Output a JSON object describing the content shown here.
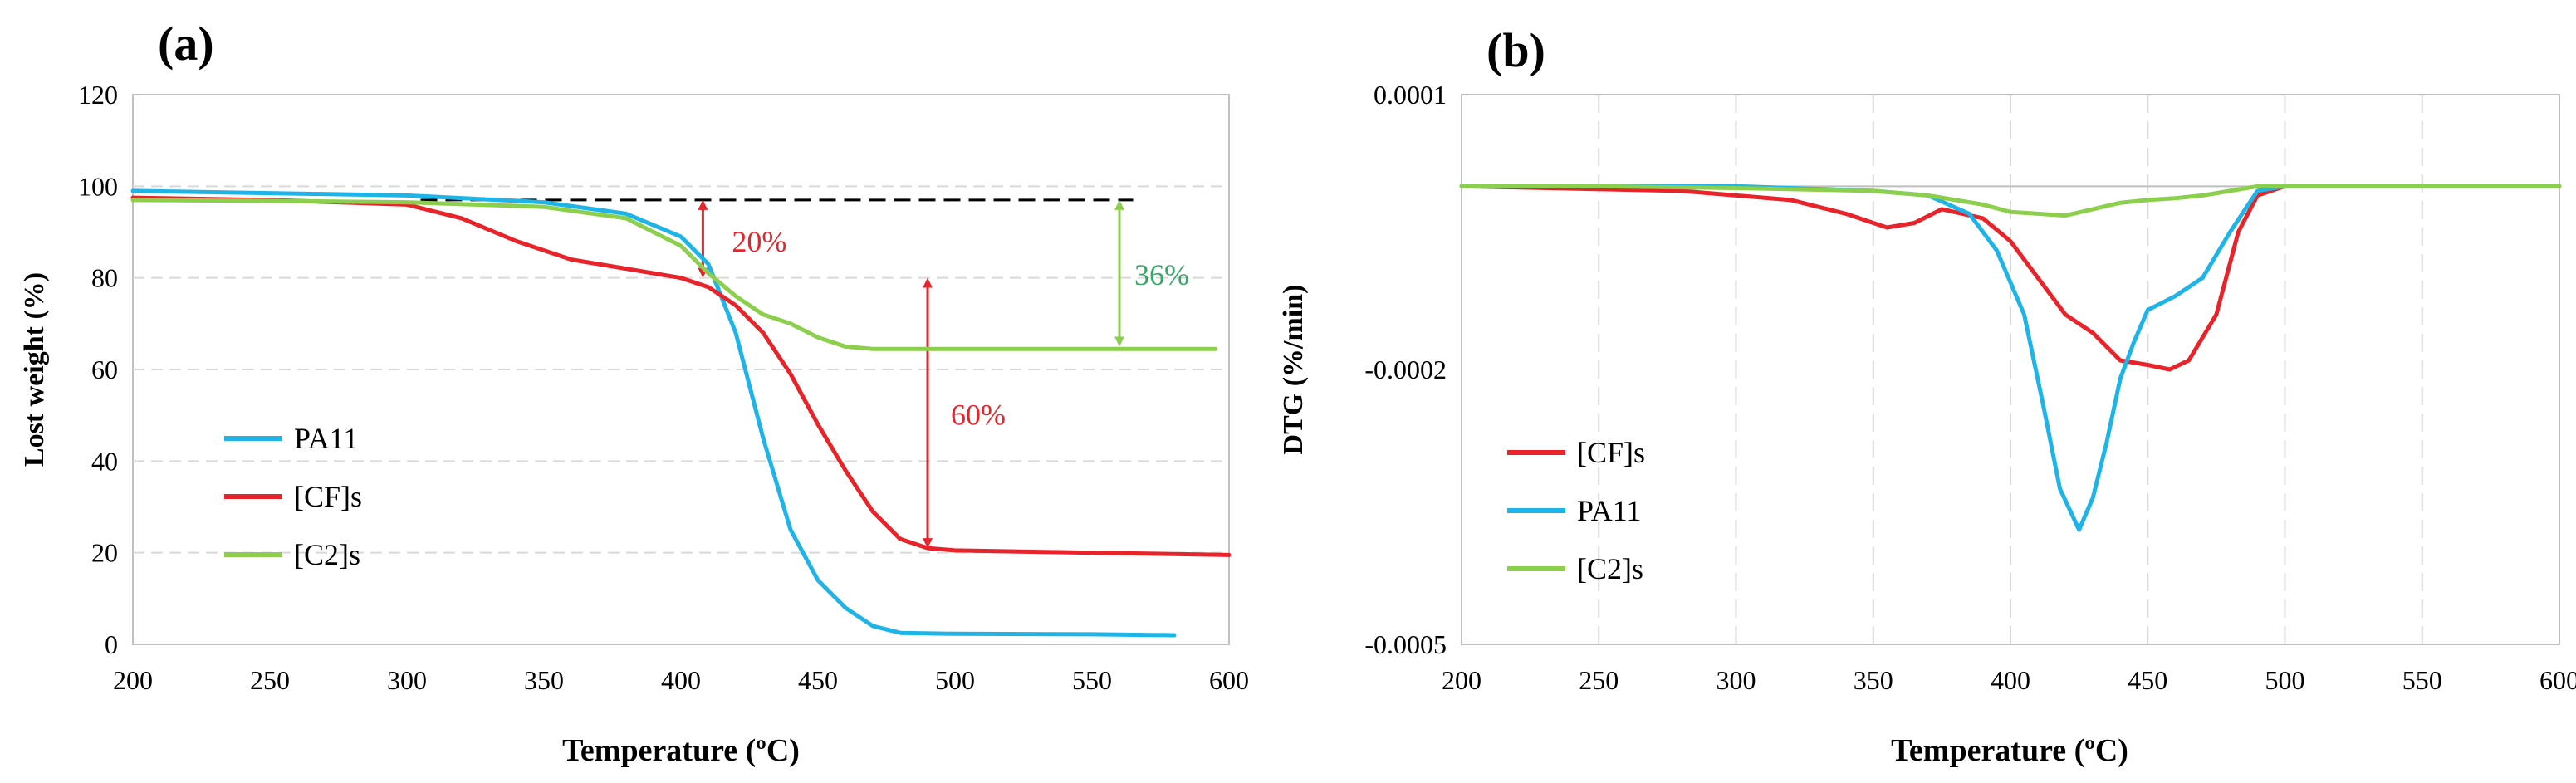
{
  "colors": {
    "red": "#e8232a",
    "blue": "#1fb4e8",
    "green": "#8ccf4d",
    "green_text": "#3aa66a",
    "grid": "#d9d9d9"
  },
  "chart_data": [
    {
      "panel_label": "(a)",
      "type": "line",
      "title": "",
      "xlabel": "Temperature (ºC)",
      "ylabel": "Lost weight (%)",
      "xlim": [
        200,
        600
      ],
      "ylim": [
        0,
        120
      ],
      "xticks": [
        200,
        250,
        300,
        350,
        400,
        450,
        500,
        550,
        600
      ],
      "yticks": [
        0,
        20,
        40,
        60,
        80,
        100,
        120
      ],
      "grid": "horizontal dashed",
      "legend_position": "lower-left",
      "legend": [
        "PA11",
        "[CF]s",
        "[C2]s"
      ],
      "series": [
        {
          "name": "PA11",
          "color_key": "blue",
          "x": [
            200,
            250,
            300,
            350,
            380,
            400,
            410,
            420,
            430,
            440,
            450,
            460,
            470,
            480,
            500,
            550,
            580
          ],
          "y": [
            99,
            98.5,
            98,
            96.5,
            94,
            89,
            83,
            68,
            45,
            25,
            14,
            8,
            4,
            2.5,
            2.3,
            2.2,
            2
          ]
        },
        {
          "name": "[CF]s",
          "color_key": "red",
          "x": [
            200,
            250,
            300,
            320,
            340,
            360,
            380,
            400,
            410,
            420,
            430,
            440,
            450,
            460,
            470,
            480,
            490,
            500,
            550,
            600
          ],
          "y": [
            97.5,
            97,
            96,
            93,
            88,
            84,
            82,
            80,
            78,
            74,
            68,
            59,
            48,
            38,
            29,
            23,
            21,
            20.5,
            20,
            19.5
          ]
        },
        {
          "name": "[C2]s",
          "color_key": "green",
          "x": [
            200,
            250,
            300,
            350,
            380,
            400,
            410,
            420,
            430,
            440,
            450,
            460,
            470,
            500,
            550,
            595
          ],
          "y": [
            97,
            96.8,
            96.5,
            95.5,
            93,
            87,
            81,
            76,
            72,
            70,
            67,
            65,
            64.5,
            64.5,
            64.5,
            64.5
          ]
        }
      ],
      "reference_line": {
        "y": 97,
        "x_start": 305,
        "x_end": 565
      },
      "annotations": [
        {
          "text": "20%",
          "color_key": "red",
          "x": 408,
          "y_top": 97,
          "y_bottom": 80
        },
        {
          "text": "60%",
          "color_key": "red",
          "x": 490,
          "y_top": 80,
          "y_bottom": 21
        },
        {
          "text": "36%",
          "color_key": "green_text",
          "x": 560,
          "y_top": 97,
          "y_bottom": 65
        }
      ]
    },
    {
      "panel_label": "(b)",
      "type": "line",
      "title": "",
      "xlabel": "Temperature (ºC)",
      "ylabel": "DTG (%/min)",
      "xlim": [
        200,
        600
      ],
      "ylim": [
        -0.0005,
        0.0001
      ],
      "xticks": [
        200,
        250,
        300,
        350,
        400,
        450,
        500,
        550,
        600
      ],
      "yticks": [
        0.0001,
        -0.0002,
        -0.0005
      ],
      "ytick_labels": [
        "0.0001",
        "-0.0002",
        "-0.0005"
      ],
      "grid": "vertical dashed",
      "legend_position": "lower-left",
      "legend": [
        "[CF]s",
        "PA11",
        "[C2]s"
      ],
      "series": [
        {
          "name": "[CF]s",
          "color_key": "red",
          "x": [
            200,
            280,
            320,
            340,
            355,
            365,
            375,
            390,
            400,
            410,
            420,
            430,
            440,
            450,
            458,
            465,
            475,
            483,
            490,
            500,
            550,
            600
          ],
          "y": [
            0,
            -5e-06,
            -1.5e-05,
            -3e-05,
            -4.5e-05,
            -4e-05,
            -2.5e-05,
            -3.5e-05,
            -6e-05,
            -0.0001,
            -0.00014,
            -0.00016,
            -0.00019,
            -0.000195,
            -0.0002,
            -0.00019,
            -0.00014,
            -5e-05,
            -1e-05,
            0,
            0,
            0
          ]
        },
        {
          "name": "PA11",
          "color_key": "blue",
          "x": [
            200,
            300,
            350,
            370,
            385,
            395,
            405,
            412,
            418,
            425,
            430,
            435,
            440,
            445,
            450,
            460,
            470,
            480,
            490,
            500,
            550,
            600
          ],
          "y": [
            0,
            0,
            -5e-06,
            -1e-05,
            -3e-05,
            -7e-05,
            -0.00014,
            -0.00024,
            -0.00033,
            -0.000375,
            -0.00034,
            -0.00028,
            -0.00021,
            -0.00017,
            -0.000135,
            -0.00012,
            -0.0001,
            -5e-05,
            -5e-06,
            0,
            0,
            0
          ]
        },
        {
          "name": "[C2]s",
          "color_key": "green",
          "x": [
            200,
            250,
            300,
            350,
            370,
            380,
            390,
            400,
            410,
            420,
            430,
            440,
            450,
            460,
            470,
            480,
            490,
            500,
            550,
            600
          ],
          "y": [
            0,
            0,
            -2e-06,
            -5e-06,
            -1e-05,
            -1.5e-05,
            -2e-05,
            -2.8e-05,
            -3e-05,
            -3.2e-05,
            -2.5e-05,
            -1.8e-05,
            -1.5e-05,
            -1.3e-05,
            -1e-05,
            -5e-06,
            0,
            0,
            0,
            0
          ]
        }
      ]
    }
  ]
}
